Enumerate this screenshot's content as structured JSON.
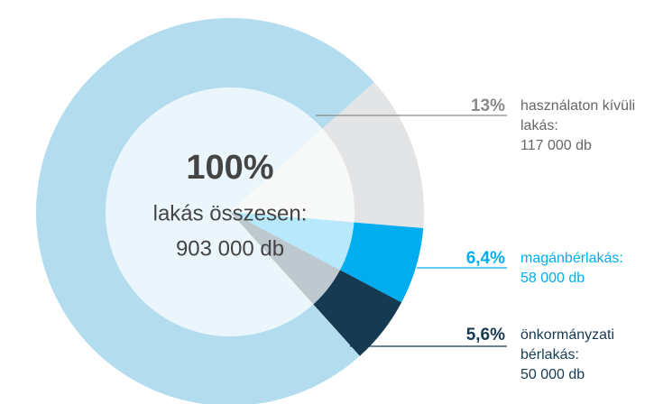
{
  "chart_data": {
    "type": "donut",
    "center_value": "100%",
    "center_label": "lakás összesen:",
    "center_count": "903 000 db",
    "categories": [
      [
        "használaton kívüli",
        "lakás:"
      ],
      [
        "magánbérlakás:"
      ],
      [
        "önkormányzati",
        "bérlakás:"
      ],
      null
    ],
    "counts": [
      "117 000 db",
      "58 000 db",
      "50 000 db",
      null
    ],
    "values": [
      13,
      6.4,
      5.6,
      75
    ],
    "value_labels": [
      "13%",
      "6,4%",
      "5,6%",
      null
    ],
    "colors": [
      "#e3e4e6",
      "#00aeef",
      "#163a52",
      "#b3ddef"
    ],
    "label_colors": [
      "#8a8a8a",
      "#00aeef",
      "#163a52",
      null
    ],
    "text_colors": [
      "#666666",
      "#00aeef",
      "#163a52",
      null
    ]
  }
}
